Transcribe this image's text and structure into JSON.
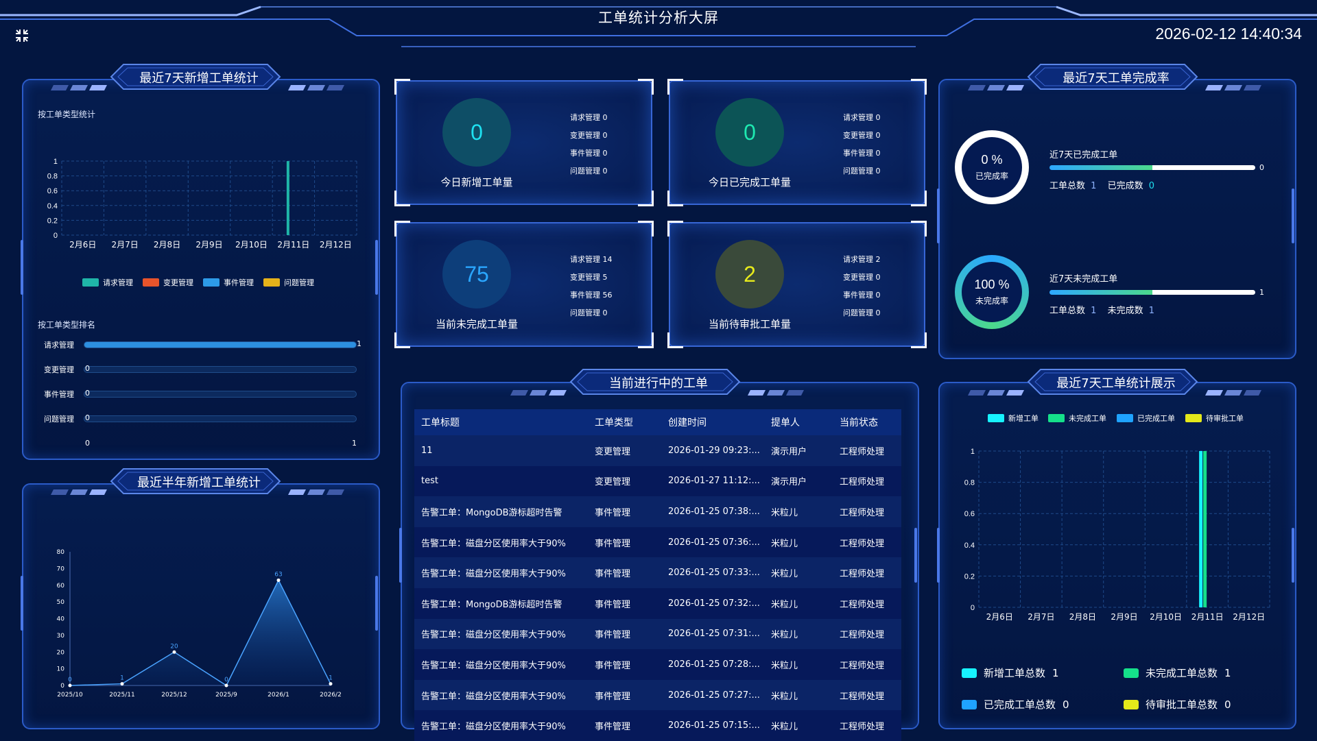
{
  "header": {
    "title": "工单统计分析大屏",
    "clock": "2026-02-12 14:40:34",
    "fullscreen_icon": "fullscreen-exit-icon"
  },
  "colors": {
    "background": "#031640",
    "panel_border": "#2b5bc8",
    "teal": "#1fb5a8",
    "red": "#e8542b",
    "blue": "#2d9be8",
    "yellow": "#e6b21a",
    "cyan": "#17f3ff",
    "green": "#15e08a",
    "lightblue": "#1fa3ff",
    "lime": "#e4e81a"
  },
  "panel_new7": {
    "title": "最近7天新增工单统计",
    "type_label": "按工单类型统计",
    "rank_label": "按工单类型排名",
    "legend": [
      "请求管理",
      "变更管理",
      "事件管理",
      "问题管理"
    ],
    "rank": [
      {
        "name": "请求管理",
        "value": "1",
        "fraction": 1
      },
      {
        "name": "变更管理",
        "value": "0",
        "fraction": 0
      },
      {
        "name": "事件管理",
        "value": "0",
        "fraction": 0
      },
      {
        "name": "问题管理",
        "value": "0",
        "fraction": 0
      }
    ],
    "rank_axis": [
      "0",
      "1"
    ]
  },
  "panel_half": {
    "title": "最近半年新增工单统计"
  },
  "kpis": [
    {
      "value": "0",
      "label": "今日新增工单量",
      "lines": [
        "请求管理 0",
        "变更管理 0",
        "事件管理 0",
        "问题管理 0"
      ],
      "ring_color": "#0e4e66",
      "text_color": "#1ee0f0"
    },
    {
      "value": "0",
      "label": "今日已完成工单量",
      "lines": [
        "请求管理 0",
        "变更管理 0",
        "事件管理 0",
        "问题管理 0"
      ],
      "ring_color": "#0c5456",
      "text_color": "#1ee8b0"
    },
    {
      "value": "75",
      "label": "当前未完成工单量",
      "lines": [
        "请求管理 14",
        "变更管理 5",
        "事件管理 56",
        "问题管理 0"
      ],
      "ring_color": "#0d3e7a",
      "text_color": "#2aa6ff"
    },
    {
      "value": "2",
      "label": "当前待审批工单量",
      "lines": [
        "请求管理 2",
        "变更管理 0",
        "事件管理 0",
        "问题管理 0"
      ],
      "ring_color": "#3a4a3a",
      "text_color": "#e6ea1c"
    }
  ],
  "panel_rate": {
    "title": "最近7天工单完成率",
    "done": {
      "pct": "0 %",
      "sub": "已完成率",
      "caption": "近7天已完成工单",
      "bar_value": "0",
      "total_label": "工单总数",
      "total": "1",
      "count_label": "已完成数",
      "count": "0"
    },
    "undone": {
      "pct": "100 %",
      "sub": "未完成率",
      "caption": "近7天未完成工单",
      "bar_value": "1",
      "total_label": "工单总数",
      "total": "1",
      "count_label": "未完成数",
      "count": "1"
    }
  },
  "panel_orders": {
    "title": "当前进行中的工单",
    "columns": [
      "工单标题",
      "工单类型",
      "创建时间",
      "提单人",
      "当前状态"
    ],
    "rows": [
      [
        "11",
        "变更管理",
        "2026-01-29 09:23:...",
        "演示用户",
        "工程师处理"
      ],
      [
        "test",
        "变更管理",
        "2026-01-27 11:12:...",
        "演示用户",
        "工程师处理"
      ],
      [
        "告警工单：MongoDB游标超时告警",
        "事件管理",
        "2026-01-25 07:38:...",
        "米粒儿",
        "工程师处理"
      ],
      [
        "告警工单：磁盘分区使用率大于90%",
        "事件管理",
        "2026-01-25 07:36:...",
        "米粒儿",
        "工程师处理"
      ],
      [
        "告警工单：磁盘分区使用率大于90%",
        "事件管理",
        "2026-01-25 07:33:...",
        "米粒儿",
        "工程师处理"
      ],
      [
        "告警工单：MongoDB游标超时告警",
        "事件管理",
        "2026-01-25 07:32:...",
        "米粒儿",
        "工程师处理"
      ],
      [
        "告警工单：磁盘分区使用率大于90%",
        "事件管理",
        "2026-01-25 07:31:...",
        "米粒儿",
        "工程师处理"
      ],
      [
        "告警工单：磁盘分区使用率大于90%",
        "事件管理",
        "2026-01-25 07:28:...",
        "米粒儿",
        "工程师处理"
      ],
      [
        "告警工单：磁盘分区使用率大于90%",
        "事件管理",
        "2026-01-25 07:27:...",
        "米粒儿",
        "工程师处理"
      ],
      [
        "告警工单：磁盘分区使用率大于90%",
        "事件管理",
        "2026-01-25 07:15:...",
        "米粒儿",
        "工程师处理"
      ]
    ]
  },
  "panel_show": {
    "title": "最近7天工单统计展示",
    "totals": [
      {
        "label": "新增工单总数",
        "value": "1",
        "color": "#17f3ff"
      },
      {
        "label": "未完成工单总数",
        "value": "1",
        "color": "#15e08a"
      },
      {
        "label": "已完成工单总数",
        "value": "0",
        "color": "#1fa3ff"
      },
      {
        "label": "待审批工单总数",
        "value": "0",
        "color": "#e4e81a"
      }
    ]
  },
  "chart_data": [
    {
      "type": "bar",
      "categories": [
        "2月6日",
        "2月7日",
        "2月8日",
        "2月9日",
        "2月10日",
        "2月11日",
        "2月12日"
      ],
      "series": [
        {
          "name": "请求管理",
          "values": [
            0,
            0,
            0,
            0,
            0,
            1,
            0
          ],
          "color": "#1fb5a8"
        },
        {
          "name": "变更管理",
          "values": [
            0,
            0,
            0,
            0,
            0,
            0,
            0
          ],
          "color": "#e8542b"
        },
        {
          "name": "事件管理",
          "values": [
            0,
            0,
            0,
            0,
            0,
            0,
            0
          ],
          "color": "#2d9be8"
        },
        {
          "name": "问题管理",
          "values": [
            0,
            0,
            0,
            0,
            0,
            0,
            0
          ],
          "color": "#e6b21a"
        }
      ],
      "ylim": [
        0,
        1
      ],
      "yticks": [
        "0",
        "0.2",
        "0.4",
        "0.6",
        "0.8",
        "1"
      ],
      "grid": true,
      "legend": "bottom"
    },
    {
      "type": "area",
      "categories": [
        "2025/10",
        "2025/11",
        "2025/12",
        "2025/9",
        "2026/1",
        "2026/2"
      ],
      "values": [
        0,
        1,
        20,
        0,
        63,
        1
      ],
      "ylim": [
        0,
        80
      ],
      "yticks": [
        "0",
        "10",
        "20",
        "30",
        "40",
        "50",
        "60",
        "70",
        "80"
      ],
      "grid": false
    },
    {
      "type": "bar",
      "categories": [
        "2月6日",
        "2月7日",
        "2月8日",
        "2月9日",
        "2月10日",
        "2月11日",
        "2月12日"
      ],
      "series": [
        {
          "name": "新增工单",
          "values": [
            0,
            0,
            0,
            0,
            0,
            1,
            0
          ],
          "color": "#17f3ff"
        },
        {
          "name": "未完成工单",
          "values": [
            0,
            0,
            0,
            0,
            0,
            1,
            0
          ],
          "color": "#15e08a"
        },
        {
          "name": "已完成工单",
          "values": [
            0,
            0,
            0,
            0,
            0,
            0,
            0
          ],
          "color": "#1fa3ff"
        },
        {
          "name": "待审批工单",
          "values": [
            0,
            0,
            0,
            0,
            0,
            0,
            0
          ],
          "color": "#e4e81a"
        }
      ],
      "ylim": [
        0,
        1
      ],
      "yticks": [
        "0",
        "0.2",
        "0.4",
        "0.6",
        "0.8",
        "1"
      ],
      "grid": true,
      "legend": "top"
    }
  ]
}
